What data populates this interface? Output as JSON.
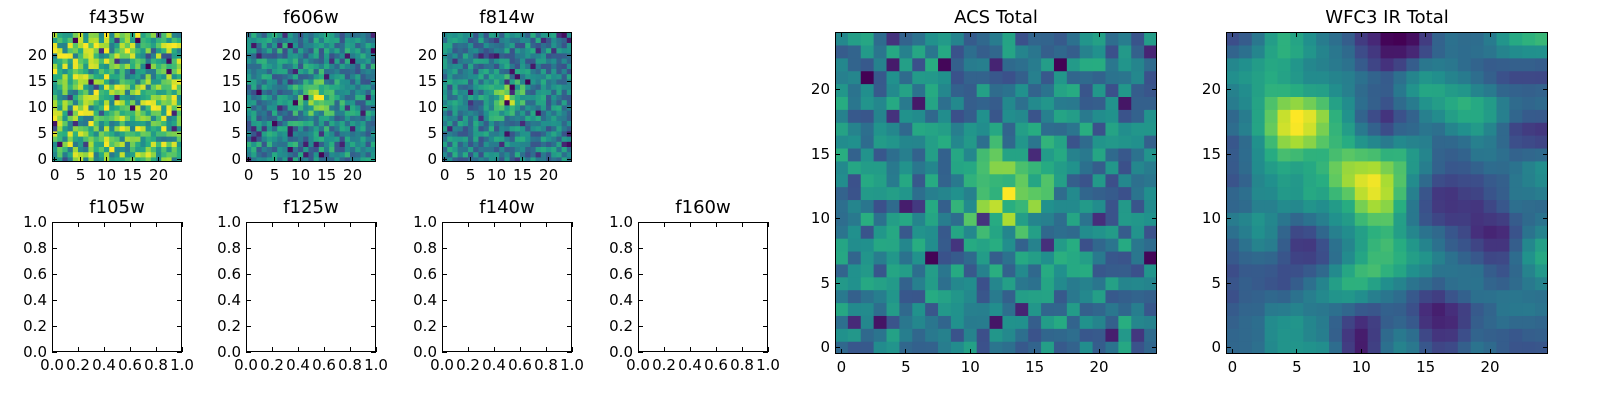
{
  "chart_data": [
    {
      "type": "heatmap",
      "title": "f435w",
      "xlim": [
        -0.5,
        24.5
      ],
      "ylim": [
        -0.5,
        24.5
      ],
      "xticks": [
        0,
        5,
        10,
        15,
        20
      ],
      "yticks": [
        0,
        5,
        10,
        15,
        20
      ],
      "grid": false,
      "colormap": "viridis",
      "pixels": 25,
      "seed": 11,
      "peak": null
    },
    {
      "type": "heatmap",
      "title": "f606w",
      "xlim": [
        -0.5,
        24.5
      ],
      "ylim": [
        -0.5,
        24.5
      ],
      "xticks": [
        0,
        5,
        10,
        15,
        20
      ],
      "yticks": [
        0,
        5,
        10,
        15,
        20
      ],
      "grid": false,
      "colormap": "viridis",
      "pixels": 25,
      "seed": 23,
      "peak": [
        13,
        12
      ]
    },
    {
      "type": "heatmap",
      "title": "f814w",
      "xlim": [
        -0.5,
        24.5
      ],
      "ylim": [
        -0.5,
        24.5
      ],
      "xticks": [
        0,
        5,
        10,
        15,
        20
      ],
      "yticks": [
        0,
        5,
        10,
        15,
        20
      ],
      "grid": false,
      "colormap": "viridis",
      "pixels": 25,
      "seed": 37,
      "peak": [
        12,
        12
      ]
    },
    {
      "type": "line",
      "title": "f105w",
      "series": [],
      "xlim": [
        0.0,
        1.0
      ],
      "ylim": [
        0.0,
        1.0
      ],
      "xticks": [
        "0.0",
        "0.2",
        "0.4",
        "0.6",
        "0.8",
        "1.0"
      ],
      "yticks": [
        "0.0",
        "0.2",
        "0.4",
        "0.6",
        "0.8",
        "1.0"
      ],
      "grid": false
    },
    {
      "type": "line",
      "title": "f125w",
      "series": [],
      "xlim": [
        0.0,
        1.0
      ],
      "ylim": [
        0.0,
        1.0
      ],
      "xticks": [
        "0.0",
        "0.2",
        "0.4",
        "0.6",
        "0.8",
        "1.0"
      ],
      "yticks": [
        "0.0",
        "0.2",
        "0.4",
        "0.6",
        "0.8",
        "1.0"
      ],
      "grid": false
    },
    {
      "type": "line",
      "title": "f140w",
      "series": [],
      "xlim": [
        0.0,
        1.0
      ],
      "ylim": [
        0.0,
        1.0
      ],
      "xticks": [
        "0.0",
        "0.2",
        "0.4",
        "0.6",
        "0.8",
        "1.0"
      ],
      "yticks": [
        "0.0",
        "0.2",
        "0.4",
        "0.6",
        "0.8",
        "1.0"
      ],
      "grid": false
    },
    {
      "type": "line",
      "title": "f160w",
      "series": [],
      "xlim": [
        0.0,
        1.0
      ],
      "ylim": [
        0.0,
        1.0
      ],
      "xticks": [
        "0.0",
        "0.2",
        "0.4",
        "0.6",
        "0.8",
        "1.0"
      ],
      "yticks": [
        "0.0",
        "0.2",
        "0.4",
        "0.6",
        "0.8",
        "1.0"
      ],
      "grid": false
    },
    {
      "type": "heatmap",
      "title": "ACS Total",
      "xlim": [
        -0.5,
        24.5
      ],
      "ylim": [
        -0.5,
        24.5
      ],
      "xticks": [
        0,
        5,
        10,
        15,
        20
      ],
      "yticks": [
        0,
        5,
        10,
        15,
        20
      ],
      "grid": false,
      "colormap": "viridis",
      "pixels": 25,
      "seed": 53,
      "peak": [
        13,
        12
      ]
    },
    {
      "type": "heatmap",
      "title": "WFC3 IR Total",
      "xlim": [
        -0.5,
        24.5
      ],
      "ylim": [
        -0.5,
        24.5
      ],
      "xticks": [
        0,
        5,
        10,
        15,
        20
      ],
      "yticks": [
        0,
        5,
        10,
        15,
        20
      ],
      "grid": false,
      "colormap": "viridis",
      "pixels": 25,
      "seed": 71,
      "peak": [
        11,
        12
      ],
      "peak2": [
        5,
        18
      ],
      "smooth": true
    }
  ]
}
